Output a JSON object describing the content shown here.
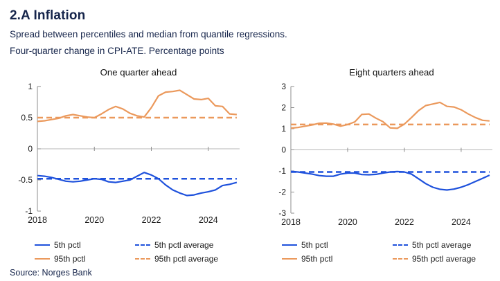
{
  "header": {
    "title": "2.A Inflation",
    "subtitle1": "Spread between percentiles and median from quantile regressions.",
    "subtitle2": "Four-quarter change in CPI-ATE. Percentage points"
  },
  "source": "Source: Norges Bank",
  "colors": {
    "blue": "#1e51dc",
    "orange": "#eb995c",
    "navy": "#16254b",
    "axis": "#8c8c8c",
    "zero_line": "#b5b5b5",
    "tick_text": "#1a1a1a",
    "title_text": "#111111"
  },
  "legend": {
    "items": [
      {
        "label": "5th pctl",
        "color": "blue",
        "style": "solid"
      },
      {
        "label": "5th pctl average",
        "color": "blue",
        "style": "dashed"
      },
      {
        "label": "95th pctl",
        "color": "orange",
        "style": "solid"
      },
      {
        "label": "95th pctl average",
        "color": "orange",
        "style": "dashed"
      }
    ]
  },
  "chart_data": [
    {
      "type": "line",
      "title": "One quarter ahead",
      "xlim": [
        2018,
        2025.1
      ],
      "ylim": [
        -1,
        1
      ],
      "yticks": [
        {
          "v": 1,
          "label": "1"
        },
        {
          "v": 0.5,
          "label": "0.5"
        },
        {
          "v": 0,
          "label": "0"
        },
        {
          "v": -0.5,
          "label": "-0.5"
        },
        {
          "v": -1,
          "label": "-1"
        }
      ],
      "xticks": [
        {
          "v": 2018,
          "label": "2018"
        },
        {
          "v": 2020,
          "label": "2020"
        },
        {
          "v": 2022,
          "label": "2022"
        },
        {
          "v": 2024,
          "label": "2024"
        }
      ],
      "x": [
        2018,
        2018.25,
        2018.5,
        2018.75,
        2019,
        2019.25,
        2019.5,
        2019.75,
        2020,
        2020.25,
        2020.5,
        2020.75,
        2021,
        2021.25,
        2021.5,
        2021.75,
        2022,
        2022.25,
        2022.5,
        2022.75,
        2023,
        2023.25,
        2023.5,
        2023.75,
        2024,
        2024.25,
        2024.5,
        2024.75,
        2025
      ],
      "series": [
        {
          "name": "5th pctl",
          "color": "blue",
          "style": "solid",
          "values": [
            -0.43,
            -0.44,
            -0.46,
            -0.49,
            -0.52,
            -0.53,
            -0.52,
            -0.5,
            -0.48,
            -0.49,
            -0.53,
            -0.54,
            -0.52,
            -0.5,
            -0.44,
            -0.38,
            -0.42,
            -0.48,
            -0.58,
            -0.66,
            -0.71,
            -0.75,
            -0.74,
            -0.71,
            -0.69,
            -0.66,
            -0.59,
            -0.57,
            -0.54
          ]
        },
        {
          "name": "95th pctl",
          "color": "orange",
          "style": "solid",
          "values": [
            0.44,
            0.45,
            0.47,
            0.49,
            0.53,
            0.55,
            0.53,
            0.51,
            0.5,
            0.56,
            0.63,
            0.68,
            0.64,
            0.57,
            0.53,
            0.51,
            0.66,
            0.85,
            0.91,
            0.92,
            0.94,
            0.87,
            0.8,
            0.79,
            0.81,
            0.69,
            0.68,
            0.56,
            0.55
          ]
        },
        {
          "name": "5th pctl average",
          "color": "blue",
          "style": "dashed",
          "constant": -0.48
        },
        {
          "name": "95th pctl average",
          "color": "orange",
          "style": "dashed",
          "constant": 0.5
        }
      ]
    },
    {
      "type": "line",
      "title": "Eight quarters ahead",
      "xlim": [
        2018,
        2025.1
      ],
      "ylim": [
        -3,
        3
      ],
      "yticks": [
        {
          "v": 3,
          "label": "3"
        },
        {
          "v": 2,
          "label": "2"
        },
        {
          "v": 1,
          "label": "1"
        },
        {
          "v": 0,
          "label": "0"
        },
        {
          "v": -1,
          "label": "-1"
        },
        {
          "v": -2,
          "label": "-2"
        },
        {
          "v": -3,
          "label": "-3"
        }
      ],
      "xticks": [
        {
          "v": 2018,
          "label": "2018"
        },
        {
          "v": 2020,
          "label": "2020"
        },
        {
          "v": 2022,
          "label": "2022"
        },
        {
          "v": 2024,
          "label": "2024"
        }
      ],
      "x": [
        2018,
        2018.25,
        2018.5,
        2018.75,
        2019,
        2019.25,
        2019.5,
        2019.75,
        2020,
        2020.25,
        2020.5,
        2020.75,
        2021,
        2021.25,
        2021.5,
        2021.75,
        2022,
        2022.25,
        2022.5,
        2022.75,
        2023,
        2023.25,
        2023.5,
        2023.75,
        2024,
        2024.25,
        2024.5,
        2024.75,
        2025
      ],
      "series": [
        {
          "name": "5th pctl",
          "color": "blue",
          "style": "solid",
          "values": [
            -1.02,
            -1.05,
            -1.1,
            -1.15,
            -1.22,
            -1.25,
            -1.25,
            -1.15,
            -1.1,
            -1.1,
            -1.17,
            -1.18,
            -1.16,
            -1.1,
            -1.05,
            -1.03,
            -1.05,
            -1.15,
            -1.37,
            -1.6,
            -1.77,
            -1.87,
            -1.9,
            -1.86,
            -1.77,
            -1.65,
            -1.5,
            -1.35,
            -1.2
          ]
        },
        {
          "name": "95th pctl",
          "color": "orange",
          "style": "solid",
          "values": [
            1.03,
            1.06,
            1.12,
            1.18,
            1.26,
            1.27,
            1.22,
            1.12,
            1.2,
            1.32,
            1.68,
            1.7,
            1.5,
            1.33,
            1.04,
            1.02,
            1.22,
            1.53,
            1.86,
            2.1,
            2.17,
            2.25,
            2.06,
            2.03,
            1.9,
            1.7,
            1.53,
            1.4,
            1.37
          ]
        },
        {
          "name": "5th pctl average",
          "color": "blue",
          "style": "dashed",
          "constant": -1.05
        },
        {
          "name": "95th pctl average",
          "color": "orange",
          "style": "dashed",
          "constant": 1.2
        }
      ]
    }
  ]
}
